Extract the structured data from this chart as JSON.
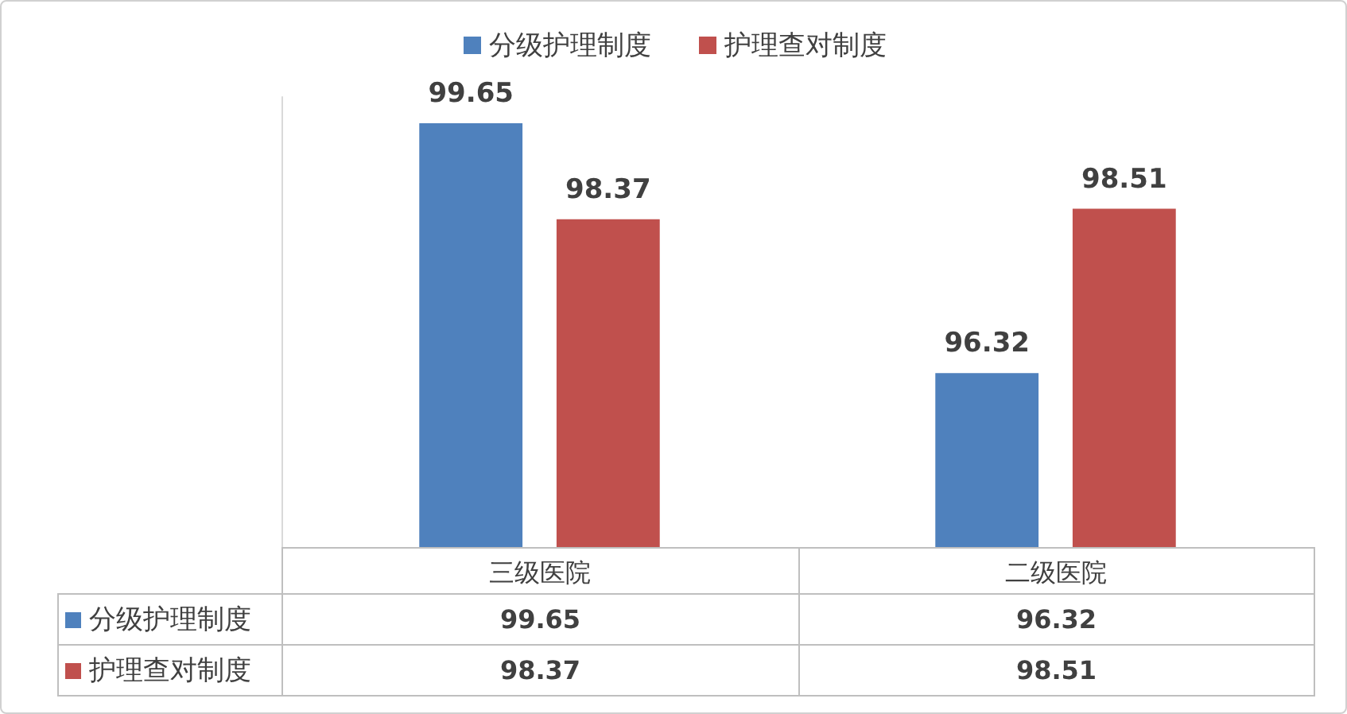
{
  "chart_data": {
    "type": "bar",
    "categories": [
      "三级医院",
      "二级医院"
    ],
    "series": [
      {
        "name": "分级护理制度",
        "color": "#4f81bd",
        "values": [
          99.65,
          96.32
        ]
      },
      {
        "name": "护理查对制度",
        "color": "#c0504d",
        "values": [
          98.37,
          98.51
        ]
      }
    ],
    "annotations": [
      "99.65",
      "96.32",
      "98.37",
      "98.51"
    ],
    "ylim": [
      94,
      100
    ],
    "data_labels": true,
    "legend": "top",
    "grid": false
  }
}
